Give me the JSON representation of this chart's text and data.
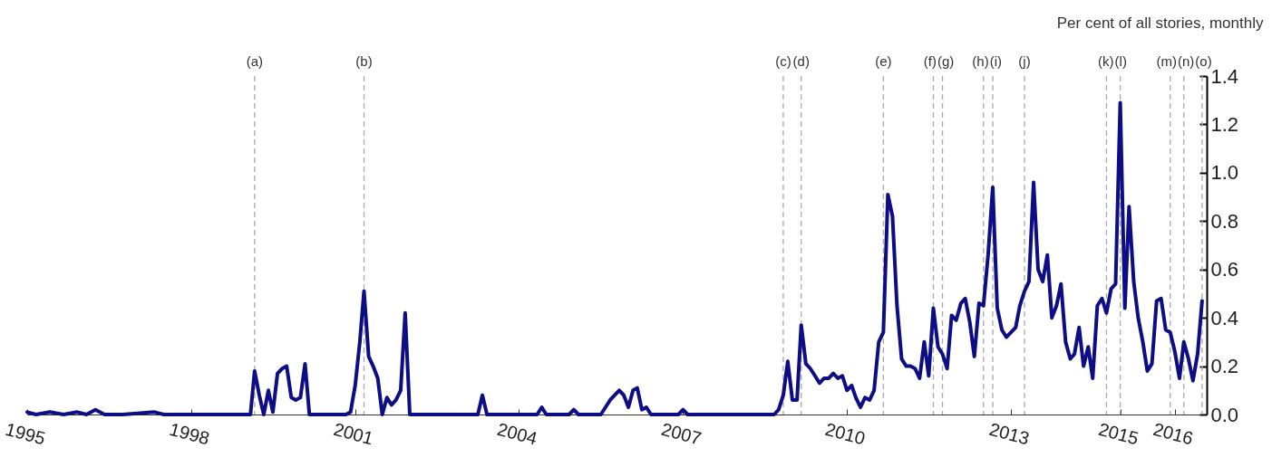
{
  "chart_data": {
    "type": "line",
    "ylabel": "Per cent of all stories, monthly",
    "color": "#0d0d86",
    "line_style": "solid",
    "x": [
      "1995-01",
      "1995-03",
      "1995-06",
      "1995-09",
      "1995-12",
      "1996-02",
      "1996-04",
      "1996-06",
      "1996-10",
      "1997-05",
      "1997-07",
      "1998-01",
      "1998-07",
      "1999-02",
      "1999-03",
      "1999-04",
      "1999-05",
      "1999-06",
      "1999-07",
      "1999-08",
      "1999-09",
      "1999-10",
      "1999-11",
      "1999-12",
      "2000-01",
      "2000-02",
      "2000-03",
      "2000-07",
      "2000-11",
      "2000-12",
      "2001-01",
      "2001-02",
      "2001-03",
      "2001-04",
      "2001-05",
      "2001-06",
      "2001-07",
      "2001-08",
      "2001-09",
      "2001-10",
      "2001-11",
      "2001-12",
      "2002-01",
      "2002-03",
      "2002-08",
      "2003-04",
      "2003-05",
      "2003-06",
      "2004-05",
      "2004-06",
      "2004-07",
      "2004-12",
      "2005-01",
      "2005-02",
      "2005-07",
      "2005-08",
      "2005-09",
      "2005-10",
      "2005-11",
      "2005-12",
      "2006-01",
      "2006-02",
      "2006-03",
      "2006-04",
      "2006-05",
      "2006-06",
      "2006-12",
      "2007-01",
      "2007-02",
      "2007-08",
      "2008-03",
      "2008-09",
      "2008-10",
      "2008-11",
      "2008-12",
      "2009-01",
      "2009-02",
      "2009-03",
      "2009-04",
      "2009-05",
      "2009-06",
      "2009-07",
      "2009-08",
      "2009-09",
      "2009-10",
      "2009-11",
      "2009-12",
      "2010-01",
      "2010-02",
      "2010-03",
      "2010-04",
      "2010-05",
      "2010-06",
      "2010-07",
      "2010-08",
      "2010-09",
      "2010-10",
      "2010-11",
      "2010-12",
      "2011-01",
      "2011-02",
      "2011-03",
      "2011-04",
      "2011-05",
      "2011-06",
      "2011-07",
      "2011-08",
      "2011-09",
      "2011-10",
      "2011-11",
      "2011-12",
      "2012-01",
      "2012-02",
      "2012-03",
      "2012-04",
      "2012-05",
      "2012-06",
      "2012-07",
      "2012-08",
      "2012-09",
      "2012-10",
      "2012-11",
      "2012-12",
      "2013-01",
      "2013-02",
      "2013-03",
      "2013-04",
      "2013-05",
      "2013-06",
      "2013-07",
      "2013-08",
      "2013-09",
      "2013-10",
      "2013-11",
      "2013-12",
      "2014-01",
      "2014-02",
      "2014-03",
      "2014-04",
      "2014-05",
      "2014-06",
      "2014-07",
      "2014-08",
      "2014-09",
      "2014-10",
      "2014-11",
      "2014-12",
      "2015-01",
      "2015-02",
      "2015-03",
      "2015-04",
      "2015-05",
      "2015-06",
      "2015-07",
      "2015-08",
      "2015-09",
      "2015-10",
      "2015-11",
      "2015-12",
      "2016-01",
      "2016-02",
      "2016-03",
      "2016-04",
      "2016-05",
      "2016-06",
      "2016-07"
    ],
    "values": [
      0.01,
      0.0,
      0.01,
      0.0,
      0.01,
      0.0,
      0.02,
      0.0,
      0.0,
      0.01,
      0.0,
      0.0,
      0.0,
      0.0,
      0.18,
      0.08,
      0.0,
      0.1,
      0.01,
      0.17,
      0.19,
      0.2,
      0.07,
      0.06,
      0.07,
      0.21,
      0.0,
      0.0,
      0.0,
      0.01,
      0.12,
      0.3,
      0.51,
      0.24,
      0.2,
      0.15,
      0.0,
      0.07,
      0.04,
      0.06,
      0.1,
      0.42,
      0.0,
      0.0,
      0.0,
      0.0,
      0.08,
      0.0,
      0.0,
      0.03,
      0.0,
      0.0,
      0.02,
      0.0,
      0.0,
      0.03,
      0.06,
      0.08,
      0.1,
      0.08,
      0.03,
      0.1,
      0.11,
      0.02,
      0.03,
      0.0,
      0.0,
      0.02,
      0.0,
      0.0,
      0.0,
      0.0,
      0.02,
      0.08,
      0.22,
      0.06,
      0.06,
      0.37,
      0.21,
      0.19,
      0.16,
      0.13,
      0.15,
      0.15,
      0.17,
      0.15,
      0.16,
      0.1,
      0.12,
      0.07,
      0.03,
      0.07,
      0.06,
      0.1,
      0.3,
      0.34,
      0.91,
      0.82,
      0.45,
      0.23,
      0.2,
      0.2,
      0.19,
      0.15,
      0.3,
      0.16,
      0.44,
      0.28,
      0.25,
      0.19,
      0.41,
      0.39,
      0.46,
      0.48,
      0.38,
      0.24,
      0.46,
      0.45,
      0.66,
      0.94,
      0.44,
      0.35,
      0.32,
      0.34,
      0.36,
      0.45,
      0.51,
      0.55,
      0.96,
      0.6,
      0.55,
      0.66,
      0.4,
      0.45,
      0.54,
      0.3,
      0.23,
      0.25,
      0.36,
      0.2,
      0.28,
      0.15,
      0.45,
      0.48,
      0.42,
      0.52,
      0.54,
      1.29,
      0.44,
      0.86,
      0.55,
      0.4,
      0.3,
      0.18,
      0.21,
      0.47,
      0.48,
      0.35,
      0.34,
      0.26,
      0.15,
      0.3,
      0.23,
      0.14,
      0.25,
      0.47
    ],
    "xlim": [
      "1995-01",
      "2016-08"
    ],
    "xticks": [
      "1995",
      "1998",
      "2001",
      "2004",
      "2007",
      "2010",
      "2013",
      "2015",
      "2016"
    ],
    "ylim": [
      0,
      1.4
    ],
    "yticks": [
      {
        "value": 0,
        "label": "0.0"
      },
      0.2,
      0.4,
      0.6,
      0.8,
      {
        "value": 1,
        "label": "1.0"
      },
      1.2,
      1.4
    ],
    "ref_lines": [
      {
        "axis": "x",
        "value": "1999-03",
        "label": "(a)",
        "color": "#aaaaaa",
        "line_style": "dashed"
      },
      {
        "axis": "x",
        "value": "2001-03",
        "label": "(b)",
        "color": "#aaaaaa",
        "line_style": "dashed"
      },
      {
        "axis": "x",
        "value": "2008-11",
        "label": "(c)",
        "color": "#aaaaaa",
        "line_style": "dashed"
      },
      {
        "axis": "x",
        "value": "2009-03",
        "label": "(d)",
        "color": "#aaaaaa",
        "line_style": "dashed"
      },
      {
        "axis": "x",
        "value": "2010-09",
        "label": "(e)",
        "color": "#aaaaaa",
        "line_style": "dashed"
      },
      {
        "axis": "x",
        "value": "2011-08",
        "label": "(f)",
        "color": "#aaaaaa",
        "line_style": "dashed"
      },
      {
        "axis": "x",
        "value": "2011-10",
        "label": "(g)",
        "color": "#aaaaaa",
        "line_style": "dashed"
      },
      {
        "axis": "x",
        "value": "2012-07",
        "label": "(h)",
        "color": "#aaaaaa",
        "line_style": "dashed"
      },
      {
        "axis": "x",
        "value": "2012-09",
        "label": "(i)",
        "color": "#aaaaaa",
        "line_style": "dashed"
      },
      {
        "axis": "x",
        "value": "2013-04",
        "label": "(j)",
        "color": "#aaaaaa",
        "line_style": "dashed"
      },
      {
        "axis": "x",
        "value": "2014-10",
        "label": "(k)",
        "color": "#aaaaaa",
        "line_style": "dashed"
      },
      {
        "axis": "x",
        "value": "2015-01",
        "label": "(l)",
        "color": "#aaaaaa",
        "line_style": "dashed"
      },
      {
        "axis": "x",
        "value": "2015-12",
        "label": "(m)",
        "color": "#aaaaaa",
        "line_style": "dashed"
      },
      {
        "axis": "x",
        "value": "2016-03",
        "label": "(n)",
        "color": "#aaaaaa",
        "line_style": "dashed"
      },
      {
        "axis": "x",
        "value": "2016-07",
        "label": "(o)",
        "color": "#aaaaaa",
        "line_style": "dashed"
      }
    ]
  }
}
